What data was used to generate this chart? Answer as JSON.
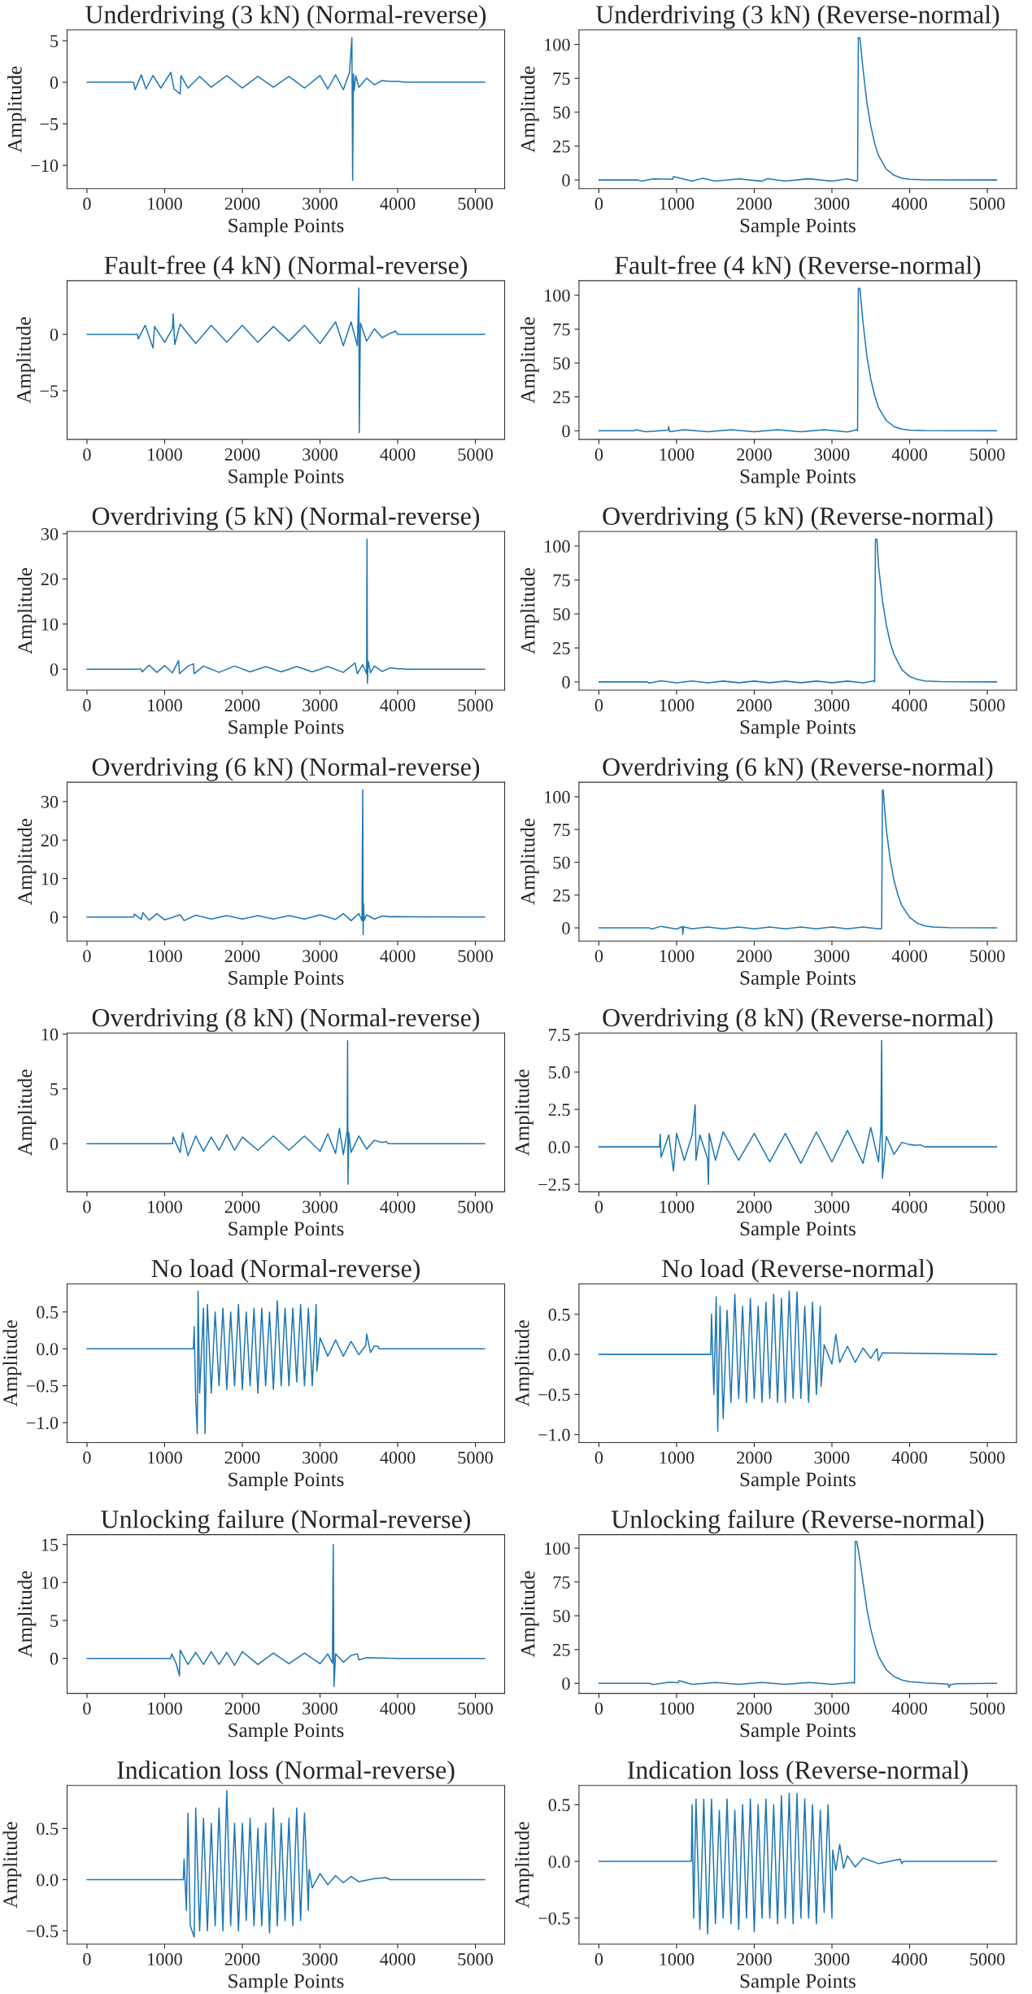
{
  "chart_data": [
    {
      "type": "line",
      "title": "Underdriving (3 kN) (Normal-reverse)",
      "xlabel": "Sample Points",
      "ylabel": "Amplitude",
      "color": "#1f77b4",
      "xlim": [
        -256,
        5376
      ],
      "xticks": [
        0,
        1000,
        2000,
        3000,
        4000,
        5000
      ],
      "ylim": [
        -12.8,
        6.3
      ],
      "yticks": [
        {
          "value": -10,
          "label": "−10"
        },
        {
          "value": -5,
          "label": "−5"
        },
        0,
        5
      ],
      "x": [
        0,
        600,
        620,
        700,
        760,
        850,
        950,
        1080,
        1120,
        1200,
        1210,
        1300,
        1450,
        1600,
        1800,
        2000,
        2200,
        2400,
        2600,
        2800,
        3000,
        3100,
        3200,
        3300,
        3380,
        3410,
        3420,
        3430,
        3440,
        3460,
        3500,
        3600,
        3700,
        3800,
        3900,
        4000,
        4100,
        5120
      ],
      "values": [
        0,
        0,
        -0.9,
        0.9,
        -0.8,
        0.8,
        -0.7,
        1.2,
        -0.8,
        -1.4,
        0.8,
        -0.7,
        0.7,
        -0.6,
        0.8,
        -0.7,
        0.7,
        -0.6,
        0.7,
        -0.7,
        0.8,
        -0.8,
        0.9,
        -0.9,
        1.2,
        5.4,
        -11.8,
        1.0,
        -1.0,
        0.8,
        -0.6,
        0.5,
        -0.3,
        0.2,
        0.1,
        0.1,
        0,
        0
      ]
    },
    {
      "type": "line",
      "title": "Underdriving (3 kN) (Reverse-normal)",
      "xlabel": "Sample Points",
      "ylabel": "Amplitude",
      "color": "#1f77b4",
      "xlim": [
        -256,
        5376
      ],
      "xticks": [
        0,
        1000,
        2000,
        3000,
        4000,
        5000
      ],
      "ylim": [
        -6.4,
        110.7
      ],
      "yticks": [
        0,
        25,
        50,
        75,
        100
      ],
      "x": [
        0,
        500,
        550,
        700,
        950,
        960,
        1200,
        1330,
        1500,
        1800,
        2100,
        2170,
        2400,
        2700,
        3000,
        3200,
        3320,
        3330,
        3340,
        3360,
        3400,
        3450,
        3500,
        3550,
        3600,
        3700,
        3800,
        3900,
        4000,
        4200,
        5120
      ],
      "values": [
        0,
        0,
        -0.8,
        0.8,
        0.5,
        2.5,
        -0.8,
        1.2,
        -0.8,
        0.8,
        -0.9,
        1.0,
        -0.8,
        0.9,
        -0.9,
        0.8,
        -0.8,
        0,
        105,
        105,
        82,
        57,
        40,
        27,
        18,
        8,
        3.5,
        1.3,
        0.5,
        0.1,
        0
      ]
    },
    {
      "type": "line",
      "title": "Fault-free (4 kN) (Normal-reverse)",
      "xlabel": "Sample Points",
      "ylabel": "Amplitude",
      "color": "#1f77b4",
      "xlim": [
        -256,
        5376
      ],
      "xticks": [
        0,
        1000,
        2000,
        3000,
        4000,
        5000
      ],
      "ylim": [
        -9.3,
        4.75
      ],
      "yticks": [
        {
          "value": -5,
          "label": "−5"
        },
        0
      ],
      "x": [
        0,
        650,
        660,
        750,
        850,
        870,
        1000,
        1100,
        1110,
        1130,
        1200,
        1400,
        1600,
        1800,
        2000,
        2200,
        2400,
        2600,
        2800,
        3000,
        3200,
        3300,
        3400,
        3480,
        3500,
        3505,
        3520,
        3600,
        3700,
        3800,
        3900,
        3950,
        3970,
        4000,
        5120
      ],
      "values": [
        0,
        0,
        -0.4,
        0.8,
        -1.2,
        0.7,
        -0.7,
        0.5,
        1.8,
        -0.9,
        0.9,
        -0.8,
        0.8,
        -0.7,
        0.8,
        -0.7,
        0.7,
        -0.6,
        0.8,
        -0.8,
        1.1,
        -1.0,
        1.1,
        -1.0,
        4.1,
        -8.7,
        1.0,
        -0.6,
        0.5,
        -0.3,
        0.1,
        0.2,
        0.3,
        0,
        0
      ]
    },
    {
      "type": "line",
      "title": "Fault-free (4 kN) (Reverse-normal)",
      "xlabel": "Sample Points",
      "ylabel": "Amplitude",
      "color": "#1f77b4",
      "xlim": [
        -256,
        5376
      ],
      "xticks": [
        0,
        1000,
        2000,
        3000,
        4000,
        5000
      ],
      "ylim": [
        -6.4,
        110.7
      ],
      "yticks": [
        0,
        25,
        50,
        75,
        100
      ],
      "x": [
        0,
        450,
        480,
        600,
        890,
        900,
        910,
        1100,
        1400,
        1700,
        2000,
        2300,
        2600,
        2900,
        3200,
        3320,
        3330,
        3340,
        3360,
        3400,
        3450,
        3500,
        3550,
        3600,
        3700,
        3800,
        3900,
        4000,
        4200,
        5120
      ],
      "values": [
        0,
        0,
        0.8,
        -0.8,
        0.5,
        3,
        -0.7,
        0.8,
        -0.8,
        0.7,
        -0.8,
        0.7,
        -0.8,
        0.8,
        -0.9,
        0.8,
        0,
        105,
        105,
        80,
        55,
        38,
        26,
        17,
        7.5,
        3,
        1.2,
        0.4,
        0.1,
        0
      ]
    },
    {
      "type": "line",
      "title": "Overdriving (5 kN) (Normal-reverse)",
      "xlabel": "Sample Points",
      "ylabel": "Amplitude",
      "color": "#1f77b4",
      "xlim": [
        -256,
        5376
      ],
      "xticks": [
        0,
        1000,
        2000,
        3000,
        4000,
        5000
      ],
      "ylim": [
        -4.65,
        30.5
      ],
      "yticks": [
        0,
        10,
        20,
        30
      ],
      "x": [
        0,
        700,
        710,
        800,
        900,
        1000,
        1100,
        1180,
        1190,
        1300,
        1370,
        1380,
        1500,
        1700,
        1900,
        2100,
        2300,
        2500,
        2700,
        2900,
        3100,
        3300,
        3450,
        3480,
        3550,
        3600,
        3605,
        3610,
        3620,
        3650,
        3700,
        3800,
        3900,
        4000,
        4080,
        4100,
        5120
      ],
      "values": [
        0,
        0,
        -0.6,
        0.9,
        -0.7,
        0.8,
        -0.8,
        1.9,
        -1.0,
        0.7,
        1.2,
        -1.0,
        0.7,
        -0.7,
        0.7,
        -0.6,
        0.6,
        -0.6,
        0.6,
        -0.6,
        0.6,
        -0.7,
        1.4,
        -1.0,
        1.0,
        -1.0,
        28.8,
        -3.1,
        1.8,
        -0.8,
        0.7,
        -0.5,
        0.3,
        0.1,
        0.1,
        0,
        0
      ]
    },
    {
      "type": "line",
      "title": "Overdriving (5 kN) (Reverse-normal)",
      "xlabel": "Sample Points",
      "ylabel": "Amplitude",
      "color": "#1f77b4",
      "xlim": [
        -256,
        5376
      ],
      "xticks": [
        0,
        1000,
        2000,
        3000,
        4000,
        5000
      ],
      "ylim": [
        -6.1,
        110.7
      ],
      "yticks": [
        0,
        25,
        50,
        75,
        100
      ],
      "x": [
        0,
        620,
        650,
        800,
        1000,
        1200,
        1400,
        1600,
        1800,
        2000,
        2200,
        2400,
        2600,
        2800,
        3000,
        3200,
        3400,
        3540,
        3550,
        3560,
        3580,
        3600,
        3650,
        3700,
        3750,
        3800,
        3900,
        4000,
        4100,
        4200,
        4400,
        5120
      ],
      "values": [
        0,
        0,
        -0.8,
        0.8,
        -0.7,
        0.7,
        -0.7,
        0.6,
        -0.6,
        0.6,
        -0.6,
        0.6,
        -0.6,
        0.6,
        -0.6,
        0.6,
        -0.7,
        0.8,
        0,
        105,
        105,
        85,
        60,
        42,
        29,
        20,
        9,
        4,
        1.8,
        0.7,
        0.2,
        0
      ]
    },
    {
      "type": "line",
      "title": "Overdriving (6 kN) (Normal-reverse)",
      "xlabel": "Sample Points",
      "ylabel": "Amplitude",
      "color": "#1f77b4",
      "xlim": [
        -256,
        5376
      ],
      "xticks": [
        0,
        1000,
        2000,
        3000,
        4000,
        5000
      ],
      "ylim": [
        -6.2,
        35
      ],
      "yticks": [
        0,
        10,
        20,
        30
      ],
      "x": [
        0,
        600,
        610,
        700,
        720,
        800,
        900,
        1000,
        1200,
        1250,
        1400,
        1600,
        1800,
        2000,
        2200,
        2400,
        2600,
        2800,
        3000,
        3200,
        3300,
        3400,
        3500,
        3540,
        3550,
        3555,
        3560,
        3570,
        3600,
        3700,
        3800,
        3900,
        4000,
        5120
      ],
      "values": [
        0,
        0,
        0.8,
        -0.6,
        1.2,
        -0.8,
        0.9,
        -0.7,
        0.6,
        -0.9,
        0.5,
        -0.5,
        0.4,
        -0.5,
        0.4,
        -0.5,
        0.4,
        -0.5,
        0.6,
        -0.6,
        0.9,
        -0.9,
        0.9,
        -0.9,
        33,
        -4.5,
        3.5,
        -0.8,
        0.6,
        -0.5,
        0.3,
        0.1,
        0.1,
        0
      ]
    },
    {
      "type": "line",
      "title": "Overdriving (6 kN) (Reverse-normal)",
      "xlabel": "Sample Points",
      "ylabel": "Amplitude",
      "color": "#1f77b4",
      "xlim": [
        -256,
        5376
      ],
      "xticks": [
        0,
        1000,
        2000,
        3000,
        4000,
        5000
      ],
      "ylim": [
        -10,
        111
      ],
      "yticks": [
        0,
        25,
        50,
        75,
        100
      ],
      "x": [
        0,
        650,
        680,
        800,
        1000,
        1075,
        1080,
        1090,
        1200,
        1400,
        1600,
        1800,
        2000,
        2200,
        2400,
        2600,
        2800,
        3000,
        3200,
        3400,
        3600,
        3640,
        3650,
        3660,
        3680,
        3700,
        3750,
        3800,
        3850,
        3900,
        4000,
        4100,
        4200,
        4300,
        4500,
        5120
      ],
      "values": [
        0,
        0,
        -0.9,
        1.2,
        -0.9,
        1.0,
        -5,
        0.8,
        -0.7,
        0.7,
        -0.7,
        0.7,
        -0.7,
        0.7,
        -0.7,
        0.7,
        -0.7,
        0.7,
        -0.7,
        0.7,
        -0.8,
        -0.5,
        105,
        105,
        90,
        75,
        52,
        36,
        25,
        17,
        8,
        3.5,
        1.5,
        0.6,
        0.2,
        0
      ]
    },
    {
      "type": "line",
      "title": "Overdriving (8 kN) (Normal-reverse)",
      "xlabel": "Sample Points",
      "ylabel": "Amplitude",
      "color": "#1f77b4",
      "xlim": [
        -256,
        5376
      ],
      "xticks": [
        0,
        1000,
        2000,
        3000,
        4000,
        5000
      ],
      "ylim": [
        -4.4,
        10.1
      ],
      "yticks": [
        0,
        5,
        10
      ],
      "x": [
        0,
        1100,
        1110,
        1200,
        1230,
        1300,
        1400,
        1500,
        1600,
        1700,
        1800,
        1900,
        2000,
        2200,
        2400,
        2600,
        2800,
        3000,
        3100,
        3200,
        3250,
        3300,
        3350,
        3355,
        3360,
        3370,
        3400,
        3500,
        3600,
        3700,
        3800,
        3850,
        3870,
        3900,
        5120
      ],
      "values": [
        0,
        0,
        0.6,
        -0.8,
        1.0,
        -1.1,
        0.7,
        -0.7,
        0.6,
        -0.6,
        0.8,
        -0.6,
        0.6,
        -0.6,
        0.7,
        -0.6,
        0.7,
        -0.7,
        0.9,
        -0.9,
        1.4,
        -1.0,
        1.2,
        9.4,
        -3.7,
        1.0,
        -0.8,
        0.7,
        -0.5,
        0.3,
        0.1,
        0.2,
        0.05,
        0,
        0
      ]
    },
    {
      "type": "line",
      "title": "Overdriving (8 kN) (Reverse-normal)",
      "xlabel": "Sample Points",
      "ylabel": "Amplitude",
      "color": "#1f77b4",
      "xlim": [
        -256,
        5376
      ],
      "xticks": [
        0,
        1000,
        2000,
        3000,
        4000,
        5000
      ],
      "ylim": [
        -3.0,
        7.6
      ],
      "yticks": [
        {
          "value": -2.5,
          "label": "−2.5"
        },
        {
          "value": 0,
          "label": "0.0"
        },
        {
          "value": 2.5,
          "label": "2.5"
        },
        {
          "value": 5,
          "label": "5.0"
        },
        {
          "value": 7.5,
          "label": "7.5"
        }
      ],
      "x": [
        0,
        780,
        790,
        800,
        900,
        960,
        1000,
        1100,
        1200,
        1240,
        1250,
        1300,
        1400,
        1410,
        1420,
        1500,
        1600,
        1800,
        2000,
        2200,
        2400,
        2600,
        2800,
        3000,
        3200,
        3400,
        3500,
        3600,
        3630,
        3640,
        3650,
        3700,
        3800,
        3900,
        4000,
        4100,
        4130,
        4200,
        5120
      ],
      "values": [
        0,
        0,
        0.85,
        -0.7,
        0.8,
        -1.6,
        0.9,
        -0.9,
        0.8,
        2.8,
        -0.9,
        0.8,
        -0.8,
        -2.5,
        0.9,
        -0.9,
        1.0,
        -0.9,
        0.9,
        -1.0,
        0.9,
        -1.1,
        1.0,
        -1.0,
        1.1,
        -1.1,
        1.3,
        -1.0,
        1.1,
        7.1,
        -2.1,
        0.7,
        -0.5,
        0.3,
        0.15,
        0.1,
        0.15,
        0,
        0
      ]
    },
    {
      "type": "line",
      "title": "No load (Normal-reverse)",
      "xlabel": "Sample Points",
      "ylabel": "Amplitude",
      "color": "#1f77b4",
      "xlim": [
        -256,
        5376
      ],
      "xticks": [
        0,
        1000,
        2000,
        3000,
        4000,
        5000
      ],
      "ylim": [
        -1.27,
        0.88
      ],
      "yticks": [
        {
          "value": -1,
          "label": "−1.0"
        },
        {
          "value": -0.5,
          "label": "−0.5"
        },
        {
          "value": 0,
          "label": "0.0"
        },
        {
          "value": 0.5,
          "label": "0.5"
        }
      ],
      "x": [
        0,
        1370,
        1380,
        1400,
        1420,
        1430,
        1450,
        1500,
        1520,
        1550,
        1600,
        1650,
        1700,
        1750,
        1800,
        1850,
        1900,
        1950,
        2000,
        2050,
        2100,
        2150,
        2200,
        2250,
        2300,
        2350,
        2400,
        2450,
        2500,
        2550,
        2600,
        2650,
        2700,
        2750,
        2800,
        2850,
        2900,
        2950,
        2960,
        3000,
        3100,
        3200,
        3300,
        3400,
        3500,
        3590,
        3600,
        3650,
        3700,
        3750,
        3760,
        5120
      ],
      "values": [
        0,
        0,
        0.3,
        -0.7,
        -1.15,
        0.78,
        -0.6,
        0.55,
        -1.15,
        0.6,
        -0.6,
        0.5,
        -0.5,
        0.55,
        -0.55,
        0.5,
        -0.5,
        0.6,
        -0.55,
        0.5,
        -0.5,
        0.55,
        -0.6,
        0.55,
        -0.5,
        0.5,
        -0.55,
        0.65,
        -0.5,
        0.55,
        -0.5,
        0.55,
        -0.45,
        0.6,
        -0.5,
        0.55,
        -0.5,
        0.6,
        -0.3,
        0.15,
        -0.1,
        0.12,
        -0.1,
        0.1,
        -0.08,
        0.05,
        0.2,
        -0.05,
        0.04,
        0.03,
        0,
        0
      ]
    },
    {
      "type": "line",
      "title": "No load (Reverse-normal)",
      "xlabel": "Sample Points",
      "ylabel": "Amplitude",
      "color": "#1f77b4",
      "xlim": [
        -256,
        5376
      ],
      "xticks": [
        0,
        1000,
        2000,
        3000,
        4000,
        5000
      ],
      "ylim": [
        -1.1,
        0.88
      ],
      "yticks": [
        {
          "value": -1,
          "label": "−1.0"
        },
        {
          "value": -0.5,
          "label": "−0.5"
        },
        {
          "value": 0,
          "label": "0.0"
        },
        {
          "value": 0.5,
          "label": "0.5"
        }
      ],
      "x": [
        0,
        1440,
        1450,
        1480,
        1510,
        1530,
        1560,
        1600,
        1650,
        1700,
        1750,
        1800,
        1850,
        1900,
        1950,
        2000,
        2050,
        2100,
        2150,
        2200,
        2250,
        2300,
        2350,
        2400,
        2450,
        2500,
        2550,
        2600,
        2650,
        2700,
        2750,
        2800,
        2850,
        2860,
        2900,
        3000,
        3050,
        3100,
        3200,
        3300,
        3400,
        3500,
        3550,
        3580,
        3600,
        3650,
        5120
      ],
      "values": [
        0,
        0,
        0.5,
        -0.5,
        0.72,
        -0.96,
        0.6,
        -0.8,
        0.55,
        -0.6,
        0.75,
        -0.55,
        0.6,
        -0.6,
        0.7,
        -0.55,
        0.6,
        -0.6,
        0.65,
        -0.55,
        0.75,
        -0.6,
        0.7,
        -0.6,
        0.79,
        -0.55,
        0.78,
        -0.55,
        0.6,
        -0.6,
        0.65,
        -0.5,
        0.6,
        -0.4,
        0.12,
        -0.12,
        0.25,
        -0.1,
        0.1,
        -0.1,
        0.08,
        -0.05,
        0.03,
        0.07,
        -0.08,
        0.02,
        0
      ]
    },
    {
      "type": "line",
      "title": "Unlocking failure (Normal-reverse)",
      "xlabel": "Sample Points",
      "ylabel": "Amplitude",
      "color": "#1f77b4",
      "xlim": [
        -256,
        5376
      ],
      "xticks": [
        0,
        1000,
        2000,
        3000,
        4000,
        5000
      ],
      "ylim": [
        -4.6,
        16.3
      ],
      "yticks": [
        0,
        5,
        10,
        15
      ],
      "x": [
        0,
        1080,
        1090,
        1150,
        1190,
        1200,
        1300,
        1400,
        1500,
        1600,
        1700,
        1800,
        1900,
        2000,
        2200,
        2400,
        2600,
        2800,
        3000,
        3100,
        3160,
        3170,
        3180,
        3200,
        3300,
        3400,
        3480,
        3500,
        3600,
        3800,
        4000,
        5120
      ],
      "values": [
        0,
        0,
        0.6,
        -0.7,
        -2.3,
        1.1,
        -0.8,
        0.8,
        -0.8,
        0.9,
        -0.8,
        0.8,
        -0.9,
        0.9,
        -0.8,
        0.7,
        -0.7,
        0.7,
        -0.7,
        0.6,
        -0.6,
        15,
        -3.7,
        0.6,
        -0.5,
        0.4,
        0.6,
        -0.2,
        0.1,
        0.05,
        0,
        0
      ]
    },
    {
      "type": "line",
      "title": "Unlocking failure (Reverse-normal)",
      "xlabel": "Sample Points",
      "ylabel": "Amplitude",
      "color": "#1f77b4",
      "xlim": [
        -256,
        5376
      ],
      "xticks": [
        0,
        1000,
        2000,
        3000,
        4000,
        5000
      ],
      "ylim": [
        -7.4,
        110
      ],
      "yticks": [
        0,
        25,
        50,
        75,
        100
      ],
      "x": [
        0,
        650,
        700,
        900,
        1020,
        1030,
        1200,
        1500,
        1800,
        2100,
        2400,
        2700,
        3000,
        3280,
        3290,
        3300,
        3320,
        3350,
        3400,
        3450,
        3500,
        3550,
        3600,
        3700,
        3800,
        3900,
        4000,
        4200,
        4490,
        4510,
        4520,
        4600,
        5120
      ],
      "values": [
        0,
        0,
        -0.8,
        0.8,
        0.5,
        2,
        -0.7,
        0.7,
        -0.7,
        0.7,
        -0.7,
        0.7,
        -0.7,
        0.7,
        0,
        105,
        105,
        95,
        75,
        55,
        40,
        29,
        20,
        10,
        5,
        2.5,
        1.2,
        0.3,
        -0.5,
        -3,
        -1,
        -0.3,
        0
      ]
    },
    {
      "type": "line",
      "title": "Indication loss (Normal-reverse)",
      "xlabel": "Sample Points",
      "ylabel": "Amplitude",
      "color": "#1f77b4",
      "xlim": [
        -256,
        5376
      ],
      "xticks": [
        0,
        1000,
        2000,
        3000,
        4000,
        5000
      ],
      "ylim": [
        -0.63,
        0.92
      ],
      "yticks": [
        {
          "value": -0.5,
          "label": "−0.5"
        },
        {
          "value": 0,
          "label": "0.0"
        },
        {
          "value": 0.5,
          "label": "0.5"
        }
      ],
      "x": [
        0,
        1240,
        1250,
        1280,
        1300,
        1330,
        1380,
        1400,
        1450,
        1500,
        1550,
        1600,
        1650,
        1700,
        1750,
        1800,
        1850,
        1900,
        1950,
        2000,
        2050,
        2100,
        2150,
        2200,
        2250,
        2300,
        2350,
        2400,
        2450,
        2500,
        2550,
        2600,
        2650,
        2700,
        2750,
        2800,
        2850,
        2860,
        2900,
        3000,
        3100,
        3200,
        3300,
        3400,
        3500,
        3700,
        3850,
        3900,
        5120
      ],
      "values": [
        0,
        0,
        0.2,
        -0.3,
        0.65,
        -0.45,
        -0.56,
        0.7,
        -0.5,
        0.6,
        -0.5,
        0.55,
        -0.45,
        0.7,
        -0.5,
        0.87,
        -0.45,
        0.55,
        -0.5,
        0.55,
        -0.4,
        0.6,
        -0.45,
        0.5,
        -0.45,
        0.55,
        -0.52,
        0.7,
        -0.45,
        0.55,
        -0.4,
        0.6,
        -0.45,
        0.7,
        -0.4,
        0.65,
        -0.3,
        0.1,
        -0.08,
        0.06,
        -0.05,
        0.04,
        -0.03,
        0.03,
        -0.02,
        0.01,
        0.02,
        0,
        0
      ]
    },
    {
      "type": "line",
      "title": "Indication loss (Reverse-normal)",
      "xlabel": "Sample Points",
      "ylabel": "Amplitude",
      "color": "#1f77b4",
      "xlim": [
        -256,
        5376
      ],
      "xticks": [
        0,
        1000,
        2000,
        3000,
        4000,
        5000
      ],
      "ylim": [
        -0.73,
        0.67
      ],
      "yticks": [
        {
          "value": -0.5,
          "label": "−0.5"
        },
        {
          "value": 0,
          "label": "0.0"
        },
        {
          "value": 0.5,
          "label": "0.5"
        }
      ],
      "x": [
        0,
        1190,
        1200,
        1220,
        1250,
        1300,
        1350,
        1400,
        1450,
        1500,
        1550,
        1600,
        1650,
        1700,
        1750,
        1800,
        1850,
        1900,
        1950,
        2000,
        2050,
        2100,
        2150,
        2200,
        2250,
        2300,
        2350,
        2400,
        2450,
        2500,
        2550,
        2600,
        2650,
        2700,
        2750,
        2800,
        2850,
        2900,
        2950,
        3000,
        3010,
        3050,
        3100,
        3150,
        3200,
        3300,
        3400,
        3600,
        3880,
        3900,
        3920,
        5120
      ],
      "values": [
        0,
        0,
        0.5,
        -0.5,
        0.55,
        -0.6,
        0.55,
        -0.64,
        0.55,
        -0.55,
        0.45,
        -0.5,
        0.55,
        -0.55,
        0.45,
        -0.6,
        0.5,
        -0.5,
        0.55,
        -0.62,
        0.5,
        -0.5,
        0.55,
        -0.5,
        0.5,
        -0.55,
        0.58,
        -0.5,
        0.6,
        -0.55,
        0.6,
        -0.5,
        0.55,
        -0.5,
        0.5,
        -0.55,
        0.45,
        -0.45,
        0.5,
        -0.5,
        0.1,
        -0.08,
        0.15,
        -0.06,
        0.05,
        -0.05,
        0.03,
        -0.02,
        0.02,
        -0.02,
        0,
        0
      ]
    }
  ]
}
